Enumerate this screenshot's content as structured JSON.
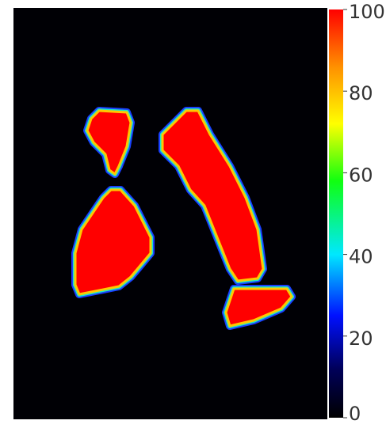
{
  "chart_data": {
    "type": "image",
    "colorbar": {
      "clim": [
        0,
        100
      ],
      "ticks": [
        0,
        20,
        40,
        60,
        80,
        100
      ]
    }
  }
}
